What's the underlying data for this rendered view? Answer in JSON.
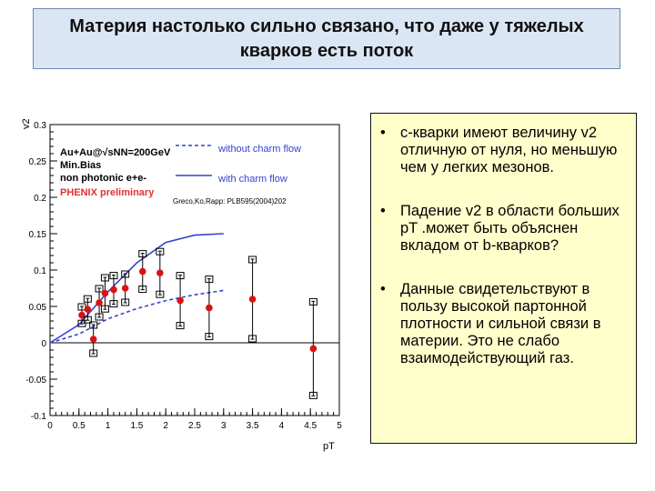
{
  "slide": {
    "title": "Материя настолько сильно связано, что даже у тяжелых кварков есть поток"
  },
  "bullets": [
    {
      "text": "с-кварки имеют величину v2 отличную от нуля, но меньшую чем у легких мезонов."
    },
    {
      "text": "Падение v2 в области больших pT .может быть объяснен вкладом от b-кварков?"
    },
    {
      "text": "Данные свидетельствуют в пользу высокой партонной плотности и сильной связи в материи. Это не слабо взаимодействующий газ."
    }
  ],
  "chart_data": {
    "type": "scatter",
    "xlabel": "pT",
    "ylabel": "v2",
    "xlim": [
      0,
      5
    ],
    "ylim": [
      -0.1,
      0.3
    ],
    "x_ticks": [
      "0",
      "0.5",
      "1",
      "1.5",
      "2",
      "2.5",
      "3",
      "3.5",
      "4",
      "4.5",
      "5"
    ],
    "y_ticks": [
      "-0.1",
      "-0.05",
      "0",
      "0.05",
      "0.1",
      "0.15",
      "0.2",
      "0.25",
      "0.3"
    ],
    "annotations": {
      "system": "Au+Au@√sNN=200GeV",
      "centrality": "Min.Bias",
      "particle": "non photonic e+e-",
      "collab": "PHENIX preliminary",
      "reference": "Greco,Ko,Rapp: PLB595(2004)202"
    },
    "legend": {
      "placement": "top-right",
      "entries": [
        "without charm flow",
        "with charm flow"
      ]
    },
    "series": [
      {
        "name": "without charm flow",
        "style": "dashed",
        "color": "#3344cc",
        "x": [
          0.0,
          0.5,
          1.0,
          1.5,
          2.0,
          2.5,
          3.0
        ],
        "y": [
          0.0,
          0.012,
          0.033,
          0.047,
          0.058,
          0.066,
          0.072
        ]
      },
      {
        "name": "with charm flow",
        "style": "solid",
        "color": "#3344cc",
        "x": [
          0.0,
          0.5,
          1.0,
          1.5,
          2.0,
          2.5,
          3.0
        ],
        "y": [
          0.0,
          0.025,
          0.07,
          0.11,
          0.138,
          0.148,
          0.15
        ]
      }
    ],
    "points": [
      {
        "x": 0.55,
        "y": 0.038,
        "yerr": 0.012
      },
      {
        "x": 0.65,
        "y": 0.046,
        "yerr": 0.015
      },
      {
        "x": 0.75,
        "y": 0.005,
        "yerr": 0.02
      },
      {
        "x": 0.85,
        "y": 0.055,
        "yerr": 0.02
      },
      {
        "x": 0.95,
        "y": 0.068,
        "yerr": 0.022
      },
      {
        "x": 1.1,
        "y": 0.073,
        "yerr": 0.02
      },
      {
        "x": 1.3,
        "y": 0.075,
        "yerr": 0.02
      },
      {
        "x": 1.6,
        "y": 0.098,
        "yerr": 0.025
      },
      {
        "x": 1.9,
        "y": 0.096,
        "yerr": 0.03
      },
      {
        "x": 2.25,
        "y": 0.058,
        "yerr": 0.035
      },
      {
        "x": 2.75,
        "y": 0.048,
        "yerr": 0.04
      },
      {
        "x": 3.5,
        "y": 0.06,
        "yerr": 0.055
      },
      {
        "x": 4.55,
        "y": -0.008,
        "yerr": 0.065
      }
    ],
    "marker_color": "#dd1111"
  }
}
